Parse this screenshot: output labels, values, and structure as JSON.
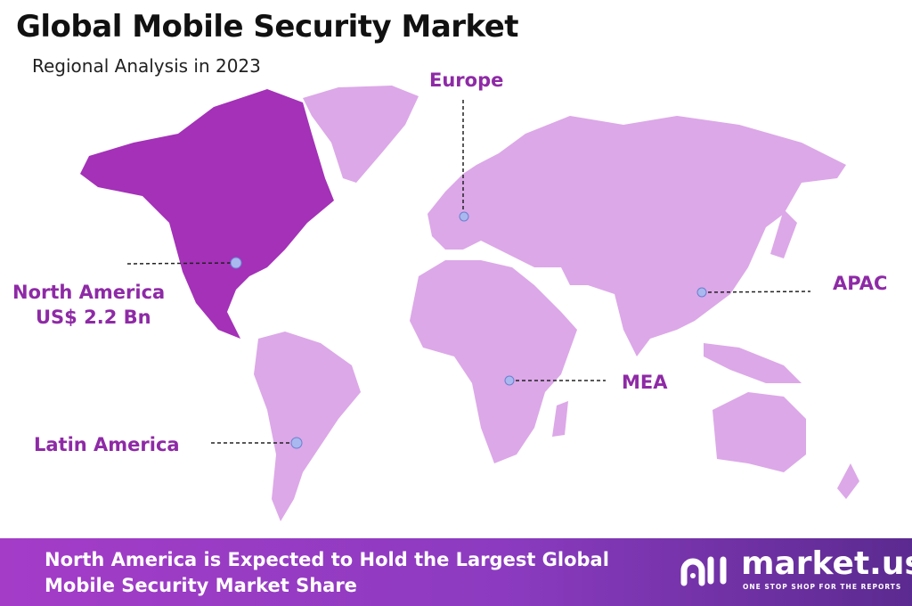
{
  "header": {
    "title": "Global Mobile Security Market",
    "subtitle": "Regional Analysis in 2023"
  },
  "colors": {
    "highlight_region": "#a431b8",
    "other_regions": "#dca8e8",
    "label": "#8e2aa6",
    "marker": "#a9b8ee",
    "footer_start": "#a43cc8",
    "footer_end": "#5b2a90"
  },
  "regions": [
    {
      "name": "North America",
      "value": "US$ 2.2 Bn",
      "highlighted": true
    },
    {
      "name": "Europe"
    },
    {
      "name": "APAC"
    },
    {
      "name": "MEA"
    },
    {
      "name": "Latin America"
    }
  ],
  "footer": {
    "line1": "North America is Expected to Hold the Largest Global",
    "line2": "Mobile Security Market Share"
  },
  "logo": {
    "name": "market.us",
    "tagline": "ONE STOP SHOP FOR THE REPORTS"
  }
}
